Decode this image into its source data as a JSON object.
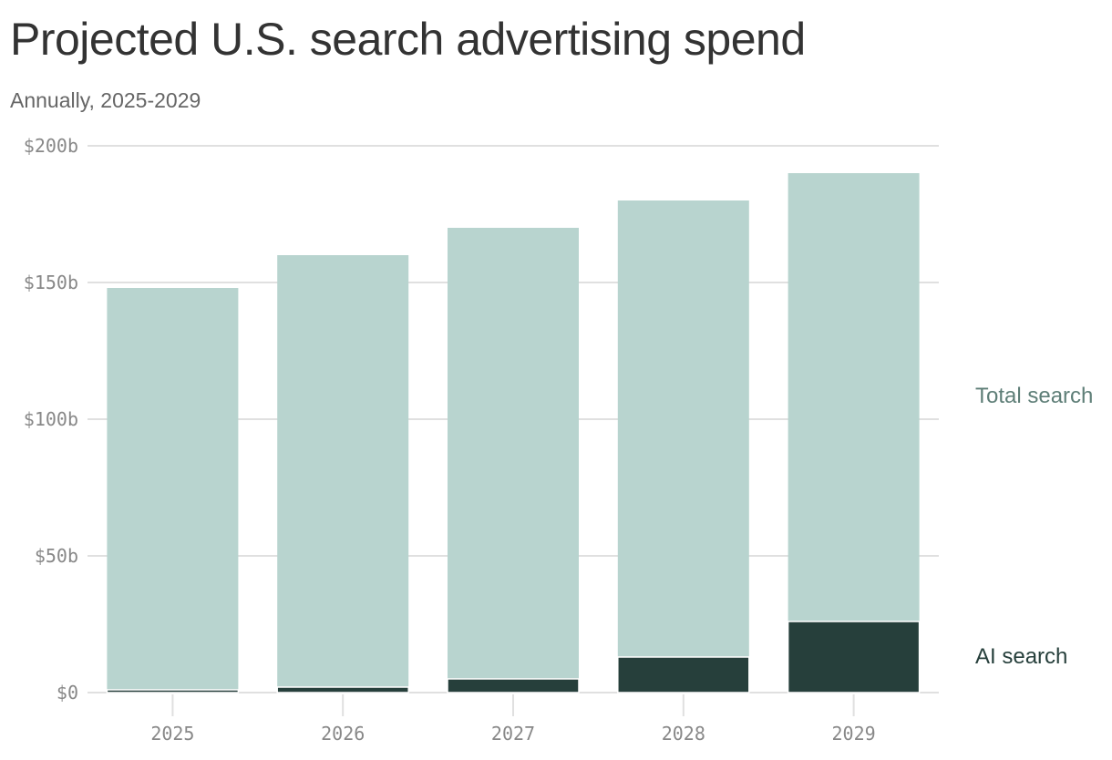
{
  "title": "Projected U.S. search advertising spend",
  "subtitle": "Annually, 2025-2029",
  "colors": {
    "total": "#b8d4cf",
    "ai": "#263f3b",
    "total_label": "#5e7e77",
    "ai_label": "#263f3b",
    "grid": "#e0e0e0"
  },
  "chart_data": {
    "type": "bar",
    "stacked": false,
    "overlapping": true,
    "categories": [
      "2025",
      "2026",
      "2027",
      "2028",
      "2029"
    ],
    "series": [
      {
        "name": "Total search",
        "values": [
          148,
          160,
          170,
          180,
          190
        ]
      },
      {
        "name": "AI search",
        "values": [
          1,
          2,
          5,
          13,
          26
        ]
      }
    ],
    "ylim": [
      0,
      200
    ],
    "y_ticks": [
      {
        "value": 0,
        "label": "$0"
      },
      {
        "value": 50,
        "label": "$50b"
      },
      {
        "value": 100,
        "label": "$100b"
      },
      {
        "value": 150,
        "label": "$150b"
      },
      {
        "value": 200,
        "label": "$200b"
      }
    ],
    "grid": true,
    "legend": "right, labels inline"
  }
}
